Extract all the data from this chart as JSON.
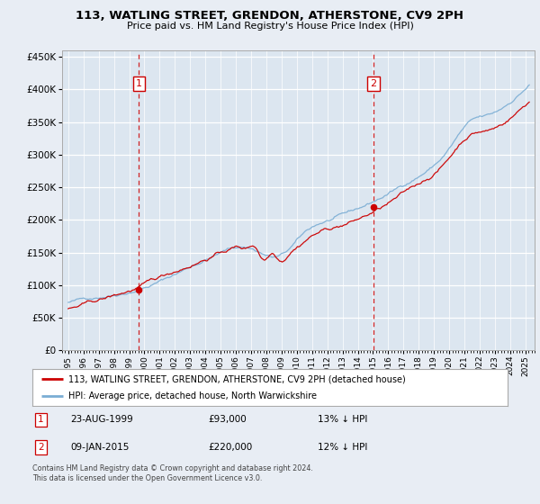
{
  "title": "113, WATLING STREET, GRENDON, ATHERSTONE, CV9 2PH",
  "subtitle": "Price paid vs. HM Land Registry's House Price Index (HPI)",
  "legend_red": "113, WATLING STREET, GRENDON, ATHERSTONE, CV9 2PH (detached house)",
  "legend_blue": "HPI: Average price, detached house, North Warwickshire",
  "annotation1_date": "23-AUG-1999",
  "annotation1_price": "£93,000",
  "annotation1_hpi": "13% ↓ HPI",
  "annotation2_date": "09-JAN-2015",
  "annotation2_price": "£220,000",
  "annotation2_hpi": "12% ↓ HPI",
  "footer": "Contains HM Land Registry data © Crown copyright and database right 2024.\nThis data is licensed under the Open Government Licence v3.0.",
  "sale1_year": 1999.64,
  "sale1_price": 93000,
  "sale2_year": 2015.03,
  "sale2_price": 220000,
  "ylim_max": 460000,
  "ylim_min": 0,
  "fig_bg": "#e8edf4",
  "plot_bg": "#dce6f0",
  "grid_color": "#ffffff",
  "red_color": "#cc0000",
  "blue_color": "#7aadd4",
  "vline_color": "#cc0000"
}
